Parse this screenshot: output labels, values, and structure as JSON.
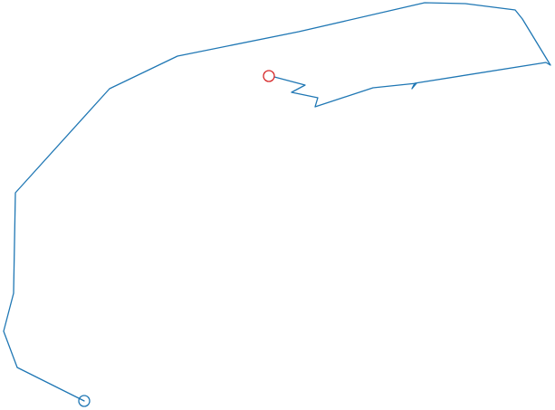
{
  "trace": {
    "line_color": "#1f77b4",
    "start_marker_color": "#1f77b4",
    "end_marker_color": "#d62728",
    "start_marker": "circle-icon",
    "end_marker": "circle-icon"
  }
}
